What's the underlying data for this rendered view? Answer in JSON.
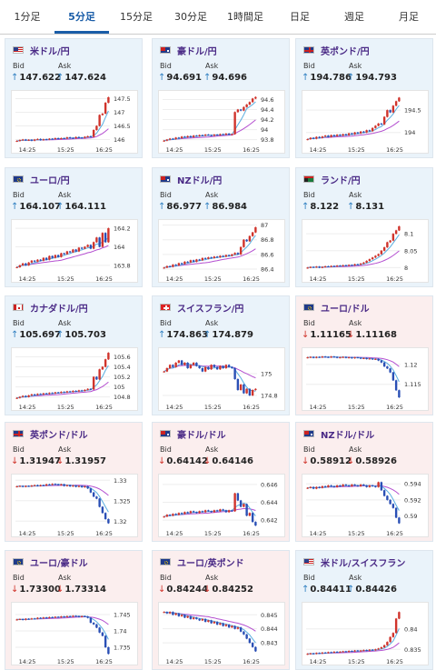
{
  "tabs": [
    "1分足",
    "5分足",
    "15分足",
    "30分足",
    "1時間足",
    "日足",
    "週足",
    "月足"
  ],
  "active_tab": 1,
  "labels": {
    "bid": "Bid",
    "ask": "Ask"
  },
  "colors": {
    "up_bg": "#eaf3fa",
    "down_bg": "#fbeeee",
    "title": "#4a2a86",
    "up_arrow": "#2f7fc1",
    "down_arrow": "#d0342c",
    "candle_up": "#d0342c",
    "candle_down": "#2a4fb5",
    "ma_short": "#5aaee0",
    "ma_long": "#b44fd0"
  },
  "cards": [
    {
      "pair": "米ドル/円",
      "direction": "up",
      "flag": "US",
      "bid": "147.622",
      "ask": "147.624",
      "chart_data": {
        "type": "candlestick",
        "x_ticks": [
          "14:25",
          "15:25",
          "16:25"
        ],
        "y_ticks": [
          "147.5",
          "147",
          "146.5",
          "146"
        ],
        "ylim": [
          145.85,
          147.65
        ],
        "closes": [
          145.95,
          145.98,
          146.0,
          145.97,
          145.99,
          145.96,
          146.0,
          146.02,
          145.98,
          146.01,
          146.0,
          146.03,
          146.02,
          146.05,
          146.03,
          146.05,
          146.04,
          146.08,
          146.06,
          146.05,
          146.09,
          146.07,
          146.06,
          146.1,
          146.12,
          146.1,
          146.35,
          146.5,
          146.9,
          146.95,
          147.35,
          147.55
        ]
      }
    },
    {
      "pair": "豪ドル/円",
      "direction": "up",
      "flag": "AU",
      "bid": "94.691",
      "ask": "94.696",
      "chart_data": {
        "type": "candlestick",
        "x_ticks": [
          "14:25",
          "15:25",
          "16:25"
        ],
        "y_ticks": [
          "94.6",
          "94.4",
          "94.2",
          "94",
          "93.8"
        ],
        "ylim": [
          93.72,
          94.7
        ],
        "closes": [
          93.78,
          93.8,
          93.82,
          93.81,
          93.84,
          93.83,
          93.86,
          93.85,
          93.87,
          93.85,
          93.88,
          93.87,
          93.89,
          93.88,
          93.9,
          93.89,
          93.88,
          93.9,
          93.89,
          93.91,
          93.9,
          93.92,
          93.9,
          93.91,
          94.35,
          94.4,
          94.38,
          94.45,
          94.5,
          94.55,
          94.62,
          94.65
        ]
      }
    },
    {
      "pair": "英ポンド/円",
      "direction": "up",
      "flag": "GB",
      "bid": "194.786",
      "ask": "194.793",
      "chart_data": {
        "type": "candlestick",
        "x_ticks": [
          "14:25",
          "15:25",
          "16:25"
        ],
        "y_ticks": [
          "194.5",
          "194"
        ],
        "ylim": [
          193.75,
          194.85
        ],
        "closes": [
          193.85,
          193.88,
          193.86,
          193.9,
          193.88,
          193.91,
          193.93,
          193.9,
          193.94,
          193.92,
          193.95,
          193.93,
          193.96,
          193.94,
          193.98,
          193.96,
          194.0,
          193.98,
          194.02,
          194.0,
          194.05,
          194.03,
          194.1,
          194.15,
          194.2,
          194.18,
          194.35,
          194.5,
          194.45,
          194.6,
          194.7,
          194.78
        ]
      }
    },
    {
      "pair": "ユーロ/円",
      "direction": "up",
      "flag": "EU",
      "bid": "164.107",
      "ask": "164.111",
      "chart_data": {
        "type": "candlestick",
        "x_ticks": [
          "14:25",
          "15:25",
          "16:25"
        ],
        "y_ticks": [
          "164.2",
          "164",
          "163.8"
        ],
        "ylim": [
          163.72,
          164.25
        ],
        "closes": [
          163.78,
          163.8,
          163.82,
          163.8,
          163.83,
          163.85,
          163.84,
          163.86,
          163.85,
          163.88,
          163.86,
          163.9,
          163.88,
          163.91,
          163.89,
          163.93,
          163.92,
          163.95,
          163.94,
          163.97,
          163.95,
          163.99,
          163.98,
          164.0,
          164.02,
          163.98,
          164.05,
          164.1,
          164.0,
          164.15,
          164.05,
          164.2
        ]
      }
    },
    {
      "pair": "NZドル/円",
      "direction": "up",
      "flag": "NZ",
      "bid": "86.977",
      "ask": "86.984",
      "chart_data": {
        "type": "candlestick",
        "x_ticks": [
          "14:25",
          "15:25",
          "16:25"
        ],
        "y_ticks": [
          "87",
          "86.8",
          "86.6",
          "86.4"
        ],
        "ylim": [
          86.35,
          87.02
        ],
        "closes": [
          86.42,
          86.44,
          86.43,
          86.46,
          86.45,
          86.48,
          86.47,
          86.5,
          86.49,
          86.52,
          86.5,
          86.53,
          86.52,
          86.55,
          86.54,
          86.56,
          86.55,
          86.57,
          86.56,
          86.58,
          86.57,
          86.59,
          86.58,
          86.6,
          86.62,
          86.6,
          86.7,
          86.8,
          86.78,
          86.85,
          86.9,
          86.97
        ]
      }
    },
    {
      "pair": "ランド/円",
      "direction": "up",
      "flag": "ZA",
      "bid": "8.122",
      "ask": "8.131",
      "chart_data": {
        "type": "candlestick",
        "x_ticks": [
          "14:25",
          "15:25",
          "16:25"
        ],
        "y_ticks": [
          "8.1",
          "8.05",
          "8"
        ],
        "ylim": [
          7.985,
          8.13
        ],
        "closes": [
          8.0,
          8.002,
          8.001,
          8.003,
          8.0,
          8.002,
          8.004,
          8.003,
          8.005,
          8.004,
          8.006,
          8.005,
          8.007,
          8.006,
          8.008,
          8.007,
          8.01,
          8.009,
          8.012,
          8.015,
          8.02,
          8.025,
          8.03,
          8.035,
          8.04,
          8.05,
          8.06,
          8.075,
          8.08,
          8.1,
          8.11,
          8.122
        ]
      }
    },
    {
      "pair": "カナダドル/円",
      "direction": "up",
      "flag": "CA",
      "bid": "105.697",
      "ask": "105.703",
      "chart_data": {
        "type": "candlestick",
        "x_ticks": [
          "14:25",
          "15:25",
          "16:25"
        ],
        "y_ticks": [
          "105.6",
          "105.4",
          "105.2",
          "105",
          "104.8"
        ],
        "ylim": [
          104.72,
          105.7
        ],
        "closes": [
          104.78,
          104.8,
          104.82,
          104.8,
          104.83,
          104.85,
          104.84,
          104.86,
          104.85,
          104.87,
          104.86,
          104.88,
          104.87,
          104.89,
          104.88,
          104.9,
          104.89,
          104.91,
          104.9,
          104.92,
          104.91,
          104.93,
          104.92,
          104.94,
          104.96,
          104.95,
          105.2,
          105.15,
          105.35,
          105.4,
          105.55,
          105.68
        ]
      }
    },
    {
      "pair": "スイスフラン/円",
      "direction": "up",
      "flag": "CH",
      "bid": "174.863",
      "ask": "174.879",
      "chart_data": {
        "type": "candlestick",
        "x_ticks": [
          "14:25",
          "15:25",
          "16:25"
        ],
        "y_ticks": [
          "175",
          "174.8"
        ],
        "ylim": [
          174.75,
          175.2
        ],
        "closes": [
          175.02,
          175.05,
          175.08,
          175.06,
          175.1,
          175.12,
          175.08,
          175.1,
          175.05,
          175.08,
          175.1,
          175.07,
          175.05,
          175.02,
          175.06,
          175.04,
          175.08,
          175.06,
          175.04,
          175.07,
          175.05,
          175.08,
          175.06,
          175.05,
          174.95,
          174.85,
          174.9,
          174.82,
          174.86,
          174.8,
          174.85,
          174.86
        ]
      }
    },
    {
      "pair": "ユーロ/ドル",
      "direction": "down",
      "flag": "EU",
      "bid": "1.11165",
      "ask": "1.11168",
      "chart_data": {
        "type": "candlestick",
        "x_ticks": [
          "14:25",
          "15:25",
          "16:25"
        ],
        "y_ticks": [
          "1.12",
          "1.115"
        ],
        "ylim": [
          1.1108,
          1.1232
        ],
        "closes": [
          1.1218,
          1.1219,
          1.1217,
          1.1219,
          1.1218,
          1.122,
          1.1219,
          1.1218,
          1.122,
          1.1219,
          1.1217,
          1.1218,
          1.1219,
          1.1217,
          1.1218,
          1.1216,
          1.1218,
          1.1217,
          1.1215,
          1.1216,
          1.1214,
          1.1215,
          1.1213,
          1.1214,
          1.121,
          1.1205,
          1.1195,
          1.119,
          1.118,
          1.116,
          1.1135,
          1.1117
        ]
      }
    },
    {
      "pair": "英ポンド/ドル",
      "direction": "down",
      "flag": "GB",
      "bid": "1.31947",
      "ask": "1.31957",
      "chart_data": {
        "type": "candlestick",
        "x_ticks": [
          "14:25",
          "15:25",
          "16:25"
        ],
        "y_ticks": [
          "1.33",
          "1.325",
          "1.32"
        ],
        "ylim": [
          1.3185,
          1.3305
        ],
        "closes": [
          1.3285,
          1.3286,
          1.3284,
          1.3286,
          1.3285,
          1.3287,
          1.3288,
          1.3286,
          1.3288,
          1.3287,
          1.329,
          1.3289,
          1.3291,
          1.329,
          1.3288,
          1.329,
          1.3286,
          1.3288,
          1.3285,
          1.3287,
          1.3284,
          1.3286,
          1.3283,
          1.3285,
          1.328,
          1.327,
          1.326,
          1.3255,
          1.3235,
          1.322,
          1.3205,
          1.3195
        ]
      }
    },
    {
      "pair": "豪ドル/ドル",
      "direction": "down",
      "flag": "AU",
      "bid": "0.64142",
      "ask": "0.64146",
      "chart_data": {
        "type": "candlestick",
        "x_ticks": [
          "14:25",
          "15:25",
          "16:25"
        ],
        "y_ticks": [
          "0.646",
          "0.644",
          "0.642"
        ],
        "ylim": [
          0.6412,
          0.6467
        ],
        "closes": [
          0.6424,
          0.6426,
          0.6425,
          0.6427,
          0.6426,
          0.6428,
          0.6427,
          0.6429,
          0.6428,
          0.643,
          0.6429,
          0.6428,
          0.643,
          0.6429,
          0.6431,
          0.643,
          0.6429,
          0.6431,
          0.643,
          0.6432,
          0.6431,
          0.6429,
          0.6431,
          0.643,
          0.645,
          0.6442,
          0.6435,
          0.6438,
          0.6425,
          0.6428,
          0.6418,
          0.6414
        ]
      }
    },
    {
      "pair": "NZドル/ドル",
      "direction": "down",
      "flag": "NZ",
      "bid": "0.58912",
      "ask": "0.58926",
      "chart_data": {
        "type": "candlestick",
        "x_ticks": [
          "14:25",
          "15:25",
          "16:25"
        ],
        "y_ticks": [
          "0.594",
          "0.592",
          "0.59"
        ],
        "ylim": [
          0.5886,
          0.5947
        ],
        "closes": [
          0.5935,
          0.5936,
          0.5934,
          0.5936,
          0.5935,
          0.5937,
          0.5936,
          0.5938,
          0.5937,
          0.5936,
          0.5938,
          0.5937,
          0.5939,
          0.5938,
          0.5937,
          0.5939,
          0.5938,
          0.5937,
          0.5939,
          0.5938,
          0.5936,
          0.5938,
          0.5937,
          0.5936,
          0.5942,
          0.5932,
          0.5925,
          0.592,
          0.5915,
          0.591,
          0.5898,
          0.5891
        ]
      }
    },
    {
      "pair": "ユーロ/豪ドル",
      "direction": "down",
      "flag": "EU",
      "bid": "1.73300",
      "ask": "1.73314",
      "chart_data": {
        "type": "candlestick",
        "x_ticks": [
          "14:25",
          "15:25",
          "16:25"
        ],
        "y_ticks": [
          "1.745",
          "1.74",
          "1.735"
        ],
        "ylim": [
          1.7325,
          1.7475
        ],
        "closes": [
          1.7435,
          1.7436,
          1.7434,
          1.7437,
          1.7436,
          1.7438,
          1.7437,
          1.744,
          1.7439,
          1.7441,
          1.744,
          1.7442,
          1.7441,
          1.7443,
          1.7442,
          1.7444,
          1.7443,
          1.7445,
          1.7444,
          1.7446,
          1.7445,
          1.7443,
          1.7445,
          1.7444,
          1.744,
          1.7425,
          1.742,
          1.741,
          1.7395,
          1.7385,
          1.735,
          1.733
        ]
      }
    },
    {
      "pair": "ユーロ/英ポンド",
      "direction": "down",
      "flag": "EU",
      "bid": "0.84244",
      "ask": "0.84252",
      "chart_data": {
        "type": "candlestick",
        "x_ticks": [
          "14:25",
          "15:25",
          "16:25"
        ],
        "y_ticks": [
          "0.845",
          "0.844",
          "0.843"
        ],
        "ylim": [
          0.8421,
          0.8456
        ],
        "closes": [
          0.8452,
          0.8451,
          0.8452,
          0.845,
          0.8451,
          0.8449,
          0.845,
          0.8448,
          0.8449,
          0.8447,
          0.8448,
          0.8447,
          0.8446,
          0.8447,
          0.8445,
          0.8446,
          0.8444,
          0.8445,
          0.8443,
          0.8444,
          0.8442,
          0.8443,
          0.8441,
          0.8442,
          0.844,
          0.8441,
          0.8438,
          0.8436,
          0.8433,
          0.843,
          0.8427,
          0.8424
        ]
      }
    },
    {
      "pair": "米ドル/スイスフラン",
      "direction": "up",
      "flag": "US",
      "bid": "0.84411",
      "ask": "0.84426",
      "chart_data": {
        "type": "candlestick",
        "x_ticks": [
          "14:25",
          "15:25",
          "16:25"
        ],
        "y_ticks": [
          "0.84",
          "0.835"
        ],
        "ylim": [
          0.8335,
          0.8455
        ],
        "closes": [
          0.8339,
          0.834,
          0.8339,
          0.8341,
          0.834,
          0.8342,
          0.8341,
          0.8343,
          0.8342,
          0.8344,
          0.8343,
          0.8344,
          0.8345,
          0.8344,
          0.8346,
          0.8345,
          0.8347,
          0.8346,
          0.8347,
          0.8348,
          0.8347,
          0.8349,
          0.8348,
          0.835,
          0.8352,
          0.8355,
          0.836,
          0.8368,
          0.838,
          0.839,
          0.8425,
          0.8441
        ]
      }
    }
  ]
}
